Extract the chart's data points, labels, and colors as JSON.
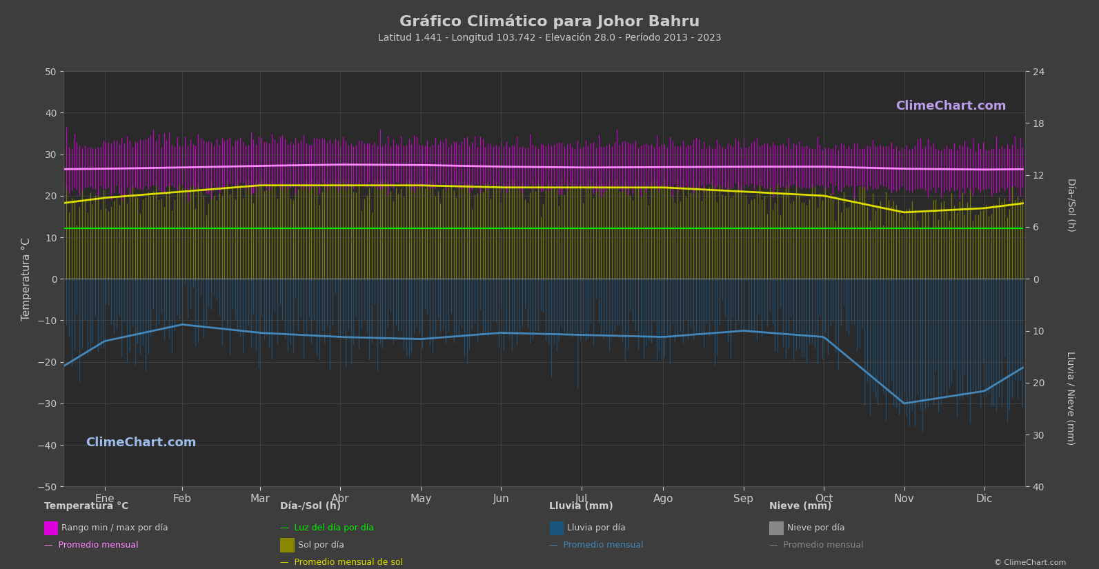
{
  "title": "Gráfico Climático para Johor Bahru",
  "subtitle": "Latitud 1.441 - Longitud 103.742 - Elevación 28.0 - Período 2013 - 2023",
  "months": [
    "Ene",
    "Feb",
    "Mar",
    "Abr",
    "May",
    "Jun",
    "Jul",
    "Ago",
    "Sep",
    "Oct",
    "Nov",
    "Dic"
  ],
  "bg_color": "#3d3d3d",
  "plot_bg_color": "#2a2a2a",
  "temp_ylim": [
    -50,
    50
  ],
  "temp_yticks": [
    -50,
    -40,
    -30,
    -20,
    -10,
    0,
    10,
    20,
    30,
    40,
    50
  ],
  "temp_monthly_avg": [
    26.5,
    26.8,
    27.2,
    27.5,
    27.4,
    27.0,
    26.8,
    26.9,
    27.0,
    27.0,
    26.5,
    26.3
  ],
  "temp_max_monthly": [
    31.5,
    31.8,
    32.2,
    32.0,
    31.8,
    31.5,
    31.3,
    31.5,
    31.3,
    31.0,
    30.8,
    30.8
  ],
  "temp_min_monthly": [
    22.5,
    22.8,
    23.2,
    23.5,
    23.4,
    23.0,
    22.8,
    22.9,
    23.0,
    23.0,
    22.5,
    22.3
  ],
  "daylight_monthly": [
    12.1,
    12.1,
    12.1,
    12.1,
    12.1,
    12.1,
    12.1,
    12.1,
    12.1,
    12.1,
    12.1,
    12.1
  ],
  "sunshine_monthly": [
    19.5,
    21.0,
    22.5,
    22.5,
    22.5,
    22.0,
    22.0,
    22.0,
    21.0,
    20.0,
    16.0,
    17.0
  ],
  "rain_avg_line_monthly": [
    -15.0,
    -11.0,
    -13.0,
    -14.0,
    -14.5,
    -13.0,
    -13.5,
    -14.0,
    -12.5,
    -14.0,
    -30.0,
    -27.0
  ],
  "temp_color_magenta": "#dd00dd",
  "temp_avg_line_color": "#ff88ff",
  "daylight_color": "#00ee00",
  "sunshine_bar_color": "#888800",
  "sunshine_line_color": "#dddd00",
  "rain_bar_color": "#1a5580",
  "rain_line_color": "#4488bb",
  "snow_bar_color": "#888888",
  "grid_color": "#505050",
  "text_color": "#cccccc",
  "right_axis_top_ticks": [
    50,
    37.5,
    25.0,
    12.5,
    0
  ],
  "right_axis_top_labels": [
    "24",
    "18",
    "12",
    "6",
    "0"
  ],
  "right_axis_bot_ticks": [
    0,
    -12.5,
    -25.0,
    -37.5,
    -50
  ],
  "right_axis_bot_labels": [
    "0",
    "10",
    "20",
    "30",
    "40"
  ]
}
